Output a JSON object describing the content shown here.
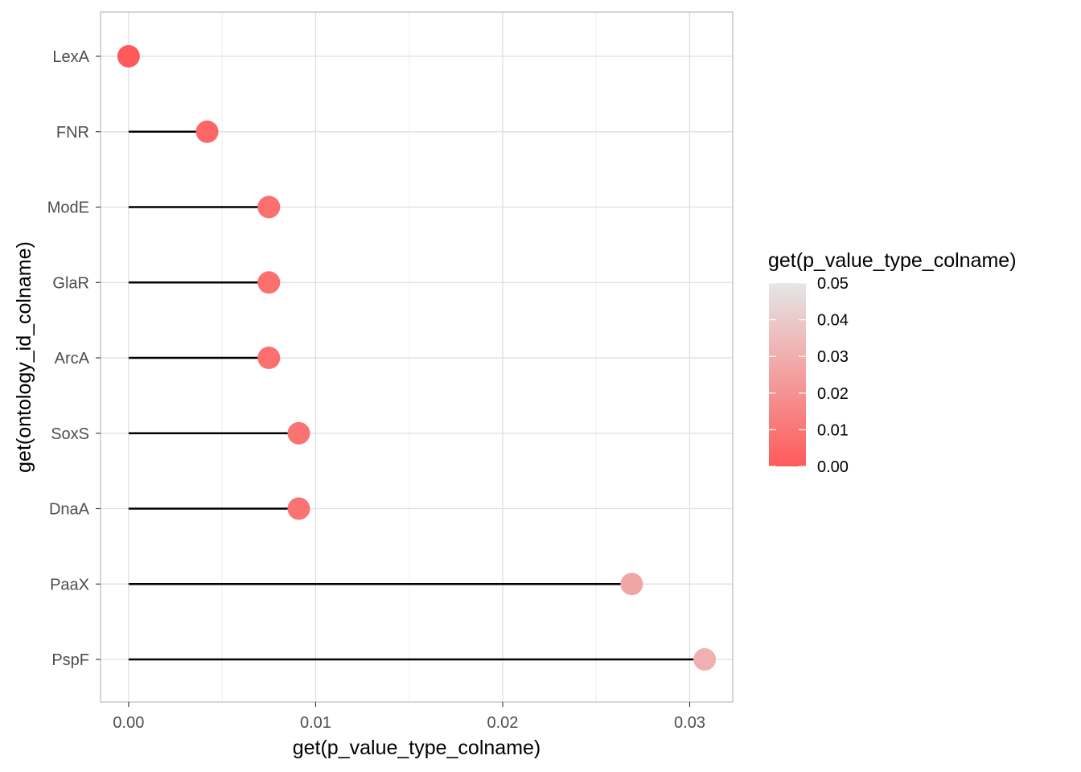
{
  "chart_data": {
    "type": "lollipop",
    "xlabel": "get(p_value_type_colname)",
    "ylabel": "get(ontology_id_colname)",
    "xlim": [
      -0.0015,
      0.0323
    ],
    "x_ticks": [
      0,
      0.01,
      0.02,
      0.03
    ],
    "x_tick_labels": [
      "0.00",
      "0.01",
      "0.02",
      "0.03"
    ],
    "grid": true,
    "categories": [
      "LexA",
      "FNR",
      "ModE",
      "GlaR",
      "ArcA",
      "SoxS",
      "DnaA",
      "PaaX",
      "PspF"
    ],
    "values": [
      0.0,
      0.0042,
      0.0075,
      0.0075,
      0.0075,
      0.0091,
      0.0091,
      0.0269,
      0.0308
    ],
    "legend": {
      "title": "get(p_value_type_colname)",
      "placement": "right",
      "range": [
        0,
        0.05
      ],
      "ticks": [
        0.0,
        0.01,
        0.02,
        0.03,
        0.04,
        0.05
      ],
      "tick_labels": [
        "0.00",
        "0.01",
        "0.02",
        "0.03",
        "0.04",
        "0.05"
      ],
      "low_color": "#FF5A5A",
      "high_color": "#E6E6E6"
    },
    "colors": {
      "panel_border": "#B3B3B3",
      "grid_major": "#DEDEDE",
      "grid_minor": "#EFEFEF",
      "segment": "#000000"
    }
  }
}
